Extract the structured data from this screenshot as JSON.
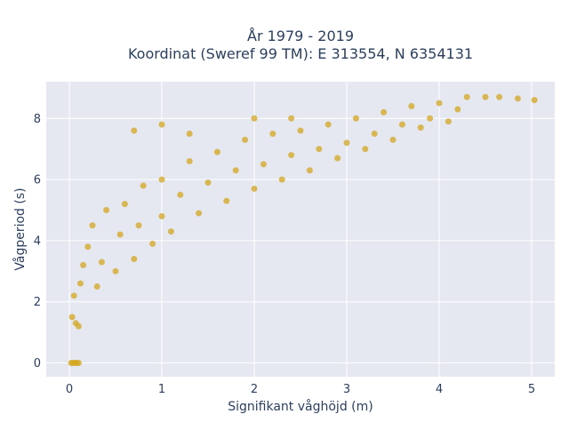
{
  "chart_data": {
    "type": "scatter",
    "title_line1": "År 1979 - 2019",
    "title_line2": "Koordinat (Sweref 99 TM): E 313554, N 6354131",
    "xlabel": "Signifikant våghöjd (m)",
    "ylabel": "Vågperiod (s)",
    "xlim": [
      -0.25,
      5.25
    ],
    "ylim": [
      -0.45,
      9.2
    ],
    "xticks": [
      0,
      1,
      2,
      3,
      4,
      5
    ],
    "yticks": [
      0,
      2,
      4,
      6,
      8
    ],
    "xtick_labels": [
      "0",
      "1",
      "2",
      "3",
      "4",
      "5"
    ],
    "ytick_labels": [
      "0",
      "2",
      "4",
      "6",
      "8"
    ],
    "grid": true,
    "legend": "none",
    "colors": {
      "marker": "#D4A520",
      "plot_bg": "#E5E8F0",
      "grid": "#ffffff",
      "text": "#2a3f5f"
    },
    "points": [
      [
        0.02,
        0.0
      ],
      [
        0.04,
        0.0
      ],
      [
        0.06,
        0.0
      ],
      [
        0.08,
        0.0
      ],
      [
        0.1,
        0.0
      ],
      [
        0.03,
        1.5
      ],
      [
        0.05,
        2.2
      ],
      [
        0.07,
        1.3
      ],
      [
        0.1,
        1.2
      ],
      [
        0.12,
        2.6
      ],
      [
        0.15,
        3.2
      ],
      [
        0.2,
        3.8
      ],
      [
        0.25,
        4.5
      ],
      [
        0.3,
        2.5
      ],
      [
        0.35,
        3.3
      ],
      [
        0.4,
        5.0
      ],
      [
        0.5,
        3.0
      ],
      [
        0.55,
        4.2
      ],
      [
        0.6,
        5.2
      ],
      [
        0.7,
        3.4
      ],
      [
        0.75,
        4.5
      ],
      [
        0.8,
        5.8
      ],
      [
        0.9,
        3.9
      ],
      [
        1.0,
        4.8
      ],
      [
        1.0,
        6.0
      ],
      [
        1.1,
        4.3
      ],
      [
        1.2,
        5.5
      ],
      [
        1.3,
        6.6
      ],
      [
        1.4,
        4.9
      ],
      [
        1.5,
        5.9
      ],
      [
        1.6,
        6.9
      ],
      [
        1.7,
        5.3
      ],
      [
        1.8,
        6.3
      ],
      [
        1.9,
        7.3
      ],
      [
        2.0,
        5.7
      ],
      [
        2.1,
        6.5
      ],
      [
        2.2,
        7.5
      ],
      [
        2.3,
        6.0
      ],
      [
        2.4,
        6.8
      ],
      [
        2.5,
        7.6
      ],
      [
        2.6,
        6.3
      ],
      [
        2.7,
        7.0
      ],
      [
        2.8,
        7.8
      ],
      [
        2.9,
        6.7
      ],
      [
        3.0,
        7.2
      ],
      [
        3.1,
        8.0
      ],
      [
        3.2,
        7.0
      ],
      [
        3.3,
        7.5
      ],
      [
        3.4,
        8.2
      ],
      [
        3.5,
        7.3
      ],
      [
        3.6,
        7.8
      ],
      [
        3.7,
        8.4
      ],
      [
        3.8,
        7.7
      ],
      [
        3.9,
        8.0
      ],
      [
        4.0,
        8.5
      ],
      [
        4.1,
        7.9
      ],
      [
        4.2,
        8.3
      ],
      [
        4.3,
        8.7
      ],
      [
        4.5,
        8.7
      ],
      [
        4.65,
        8.7
      ],
      [
        4.85,
        8.65
      ],
      [
        5.03,
        8.6
      ],
      [
        0.7,
        7.6
      ],
      [
        1.0,
        7.8
      ],
      [
        1.3,
        7.5
      ],
      [
        2.0,
        8.0
      ],
      [
        2.4,
        8.0
      ]
    ]
  }
}
